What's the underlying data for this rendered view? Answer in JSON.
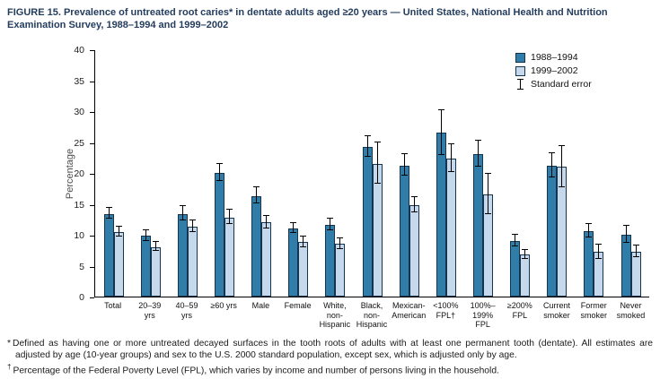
{
  "title": "FIGURE 15. Prevalence of untreated root caries* in dentate adults aged ≥20 years — United States, National Health and Nutrition Examination Survey, 1988–1994 and 1999–2002",
  "ylabel": "Percentage",
  "legend": {
    "series1": "1988–1994",
    "series2": "1999–2002",
    "stderr": "Standard error"
  },
  "footnotes": {
    "marker1": "*",
    "text1": "Defined as having one or more untreated decayed surfaces in the tooth roots of adults with at least one permanent tooth (dentate). All estimates are adjusted by age (10-year groups) and sex to the U.S. 2000 standard population, except sex, which is adjusted only by age.",
    "marker2": "†",
    "text2": "Percentage of the Federal Poverty Level (FPL), which varies by income and number of persons living in the household."
  },
  "chart_data": {
    "type": "bar",
    "title": "Prevalence of untreated root caries in dentate adults aged ≥20 years, United States, NHANES 1988–1994 and 1999–2002",
    "xlabel": "",
    "ylabel": "Percentage",
    "ylim": [
      0,
      40
    ],
    "yticks": [
      0,
      5,
      10,
      15,
      20,
      25,
      30,
      35,
      40
    ],
    "grid": false,
    "legend_position": "top-right",
    "error_bars": "standard error",
    "categories": [
      "Total",
      "20–39 yrs",
      "40–59 yrs",
      "≥60 yrs",
      "Male",
      "Female",
      "White, non-Hispanic",
      "Black, non-Hispanic",
      "Mexican-American",
      "<100% FPL†",
      "100%–199% FPL",
      "≥200% FPL",
      "Current smoker",
      "Former smoker",
      "Never smoked"
    ],
    "category_label_lines": [
      [
        "Total"
      ],
      [
        "20–39",
        "yrs"
      ],
      [
        "40–59",
        "yrs"
      ],
      [
        "≥60 yrs"
      ],
      [
        "Male"
      ],
      [
        "Female"
      ],
      [
        "White,",
        "non-",
        "Hispanic"
      ],
      [
        "Black,",
        "non-",
        "Hispanic"
      ],
      [
        "Mexican-",
        "American"
      ],
      [
        "<100%",
        "FPL†"
      ],
      [
        "100%–",
        "199%",
        "FPL"
      ],
      [
        "≥200%",
        "FPL"
      ],
      [
        "Current",
        "smoker"
      ],
      [
        "Former",
        "smoker"
      ],
      [
        "Never",
        "smoked"
      ]
    ],
    "series": [
      {
        "name": "1988–1994",
        "color": "#2f7da8",
        "values": [
          13.4,
          9.8,
          13.4,
          20.0,
          16.3,
          11.0,
          11.6,
          24.2,
          21.2,
          26.5,
          23.0,
          9.0,
          21.2,
          10.6,
          10.0
        ],
        "stderr": [
          1.0,
          0.9,
          1.2,
          1.4,
          1.4,
          0.9,
          1.0,
          1.7,
          1.8,
          3.7,
          2.2,
          1.0,
          2.0,
          1.2,
          1.5
        ]
      },
      {
        "name": "1999–2002",
        "color": "#c6d9ec",
        "values": [
          10.4,
          8.0,
          11.3,
          12.8,
          12.0,
          8.8,
          8.5,
          21.5,
          14.8,
          22.3,
          16.5,
          6.8,
          21.0,
          7.2,
          7.3
        ],
        "stderr": [
          0.9,
          0.8,
          1.0,
          1.2,
          1.1,
          0.9,
          0.9,
          3.4,
          1.3,
          2.3,
          3.3,
          0.8,
          3.4,
          1.2,
          1.0
        ]
      }
    ]
  }
}
